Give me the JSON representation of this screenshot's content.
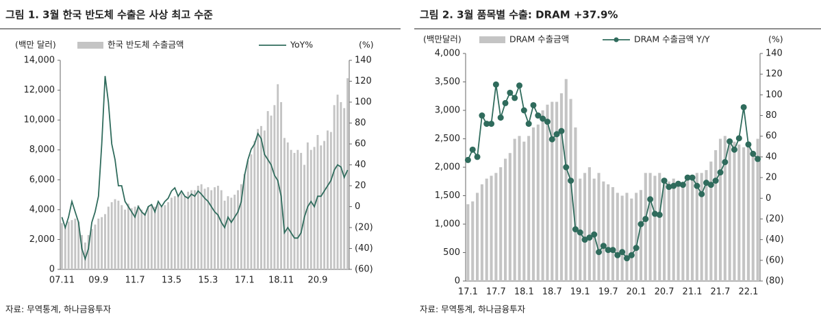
{
  "chart_data": [
    {
      "type": "combo",
      "title": "그림 1. 3월 한국 반도체 수출은 사상 최고 수준",
      "y_label": "(백만 달러)",
      "y2_label": "(%)",
      "source": "자료: 무역통계, 하나금융투자",
      "categories": [
        "07.11",
        null,
        null,
        null,
        null,
        null,
        null,
        null,
        null,
        null,
        null,
        "09.9",
        null,
        null,
        null,
        null,
        null,
        null,
        null,
        null,
        null,
        null,
        "11.7",
        null,
        null,
        null,
        null,
        null,
        null,
        null,
        null,
        null,
        null,
        "13.5",
        null,
        null,
        null,
        null,
        null,
        null,
        null,
        null,
        null,
        null,
        "15.3",
        null,
        null,
        null,
        null,
        null,
        null,
        null,
        null,
        null,
        null,
        "17.1",
        null,
        null,
        null,
        null,
        null,
        null,
        null,
        null,
        null,
        null,
        "18.11",
        null,
        null,
        null,
        null,
        null,
        null,
        null,
        null,
        null,
        null,
        "20.9",
        null,
        null,
        null,
        null,
        null,
        null,
        null,
        null,
        null
      ],
      "series": [
        {
          "name": "한국 반도체 수출금액",
          "kind": "bar",
          "color": "#c4c4c4",
          "values": [
            3100,
            2900,
            3200,
            3300,
            3400,
            3200,
            2300,
            1800,
            2300,
            2700,
            3000,
            3400,
            3500,
            3700,
            4200,
            4500,
            4700,
            4600,
            4300,
            4000,
            4400,
            4100,
            4200,
            4300,
            4000,
            3800,
            4200,
            4300,
            4200,
            4400,
            4200,
            4300,
            4500,
            4800,
            4900,
            5000,
            5100,
            4900,
            5200,
            5300,
            5300,
            5600,
            5700,
            5400,
            5500,
            5300,
            5500,
            5600,
            5300,
            4600,
            4900,
            4800,
            5000,
            5300,
            5700,
            6400,
            7300,
            7700,
            8600,
            9400,
            9600,
            9300,
            10600,
            10300,
            11000,
            12400,
            11200,
            8800,
            8500,
            8000,
            7800,
            8000,
            7800,
            7000,
            8500,
            8000,
            8200,
            9000,
            8300,
            8600,
            9300,
            9200,
            11000,
            11700,
            11200,
            10800,
            12800
          ]
        },
        {
          "name": "YoY%",
          "kind": "line",
          "axis": "y2",
          "color": "#2f6b5c",
          "values": [
            -10,
            -20,
            -10,
            5,
            -5,
            -15,
            -40,
            -50,
            -40,
            -15,
            -5,
            10,
            60,
            125,
            100,
            60,
            45,
            20,
            20,
            5,
            0,
            -5,
            -10,
            0,
            -5,
            -8,
            0,
            2,
            -5,
            5,
            0,
            5,
            8,
            15,
            18,
            10,
            15,
            10,
            8,
            12,
            10,
            15,
            12,
            8,
            5,
            0,
            -5,
            -8,
            -15,
            -20,
            -10,
            -15,
            -10,
            -5,
            5,
            30,
            45,
            55,
            60,
            70,
            65,
            50,
            45,
            40,
            30,
            25,
            10,
            -25,
            -20,
            -25,
            -30,
            -30,
            -25,
            -10,
            0,
            5,
            0,
            10,
            10,
            15,
            20,
            25,
            35,
            40,
            38,
            28,
            35
          ]
        }
      ],
      "ylim": [
        0,
        14000
      ],
      "yticks": [
        0,
        {
          "value": 2000,
          "label": "2,000"
        },
        {
          "value": 4000,
          "label": "4,000"
        },
        {
          "value": 6000,
          "label": "6,000"
        },
        {
          "value": 8000,
          "label": "8,000"
        },
        {
          "value": 10000,
          "label": "10,000"
        },
        {
          "value": 12000,
          "label": "12,000"
        },
        {
          "value": 14000,
          "label": "14,000"
        }
      ],
      "y2lim": [
        -60,
        140
      ],
      "y2ticks": [
        {
          "value": -60,
          "label": "(60)"
        },
        {
          "value": -40,
          "label": "(40)"
        },
        {
          "value": -20,
          "label": "(20)"
        },
        0,
        20,
        40,
        60,
        80,
        100,
        120,
        140
      ]
    },
    {
      "type": "combo",
      "title": "그림 2. 3월 품목별 수출: DRAM +37.9%",
      "y_label": "(백만달러)",
      "y2_label": "(%)",
      "source": "자료: 무역통계, 하나금융투자",
      "categories": [
        "17.1",
        null,
        null,
        null,
        null,
        null,
        "17.7",
        null,
        null,
        null,
        null,
        null,
        "18.1",
        null,
        null,
        null,
        null,
        null,
        "18.7",
        null,
        null,
        null,
        null,
        null,
        "19.1",
        null,
        null,
        null,
        null,
        null,
        "19.7",
        null,
        null,
        null,
        null,
        null,
        "20.1",
        null,
        null,
        null,
        null,
        null,
        "20.7",
        null,
        null,
        null,
        null,
        null,
        "21.1",
        null,
        null,
        null,
        null,
        null,
        "21.7",
        null,
        null,
        null,
        null,
        null,
        "22.1",
        null,
        null
      ],
      "series": [
        {
          "name": "DRAM 수출금액",
          "kind": "bar",
          "color": "#c4c4c4",
          "values": [
            1350,
            1400,
            1550,
            1700,
            1800,
            1850,
            1900,
            2000,
            2150,
            2250,
            2500,
            2550,
            2450,
            2550,
            2700,
            2750,
            3000,
            3100,
            3150,
            3150,
            3300,
            3550,
            3200,
            2700,
            1800,
            1900,
            2000,
            1800,
            1900,
            1750,
            1700,
            1650,
            1550,
            1500,
            1550,
            1450,
            1550,
            1600,
            1900,
            1900,
            1850,
            1900,
            1800,
            1750,
            1800,
            1750,
            1700,
            1800,
            1850,
            1900,
            1900,
            1950,
            2100,
            2300,
            2500,
            2550,
            2500,
            2450,
            2400,
            2350,
            2350,
            2200,
            2500
          ]
        },
        {
          "name": "DRAM 수출금액 Y/Y",
          "kind": "line",
          "axis": "y2",
          "color": "#2f6b5c",
          "markers": true,
          "values": [
            37,
            47,
            40,
            80,
            72,
            72,
            110,
            78,
            92,
            102,
            97,
            109,
            85,
            72,
            90,
            80,
            77,
            74,
            57,
            62,
            65,
            30,
            17,
            -30,
            -33,
            -40,
            -38,
            -35,
            -52,
            -46,
            -50,
            -50,
            -55,
            -52,
            -58,
            -55,
            -48,
            -25,
            -20,
            -1,
            -15,
            -16,
            17,
            11,
            12,
            14,
            13,
            20,
            20,
            12,
            4,
            15,
            13,
            17,
            25,
            35,
            55,
            47,
            58,
            88,
            52,
            43,
            38
          ]
        }
      ],
      "ylim": [
        0,
        4000
      ],
      "yticks": [
        0,
        500,
        {
          "value": 1000,
          "label": "1,000"
        },
        {
          "value": 1500,
          "label": "1,500"
        },
        {
          "value": 2000,
          "label": "2,000"
        },
        {
          "value": 2500,
          "label": "2,500"
        },
        {
          "value": 3000,
          "label": "3,000"
        },
        {
          "value": 3500,
          "label": "3,500"
        },
        {
          "value": 4000,
          "label": "4,000"
        }
      ],
      "y2lim": [
        -80,
        140
      ],
      "y2ticks": [
        {
          "value": -80,
          "label": "(80)"
        },
        {
          "value": -60,
          "label": "(60)"
        },
        {
          "value": -40,
          "label": "(40)"
        },
        {
          "value": -20,
          "label": "(20)"
        },
        0,
        20,
        40,
        60,
        80,
        100,
        120,
        140
      ]
    }
  ]
}
